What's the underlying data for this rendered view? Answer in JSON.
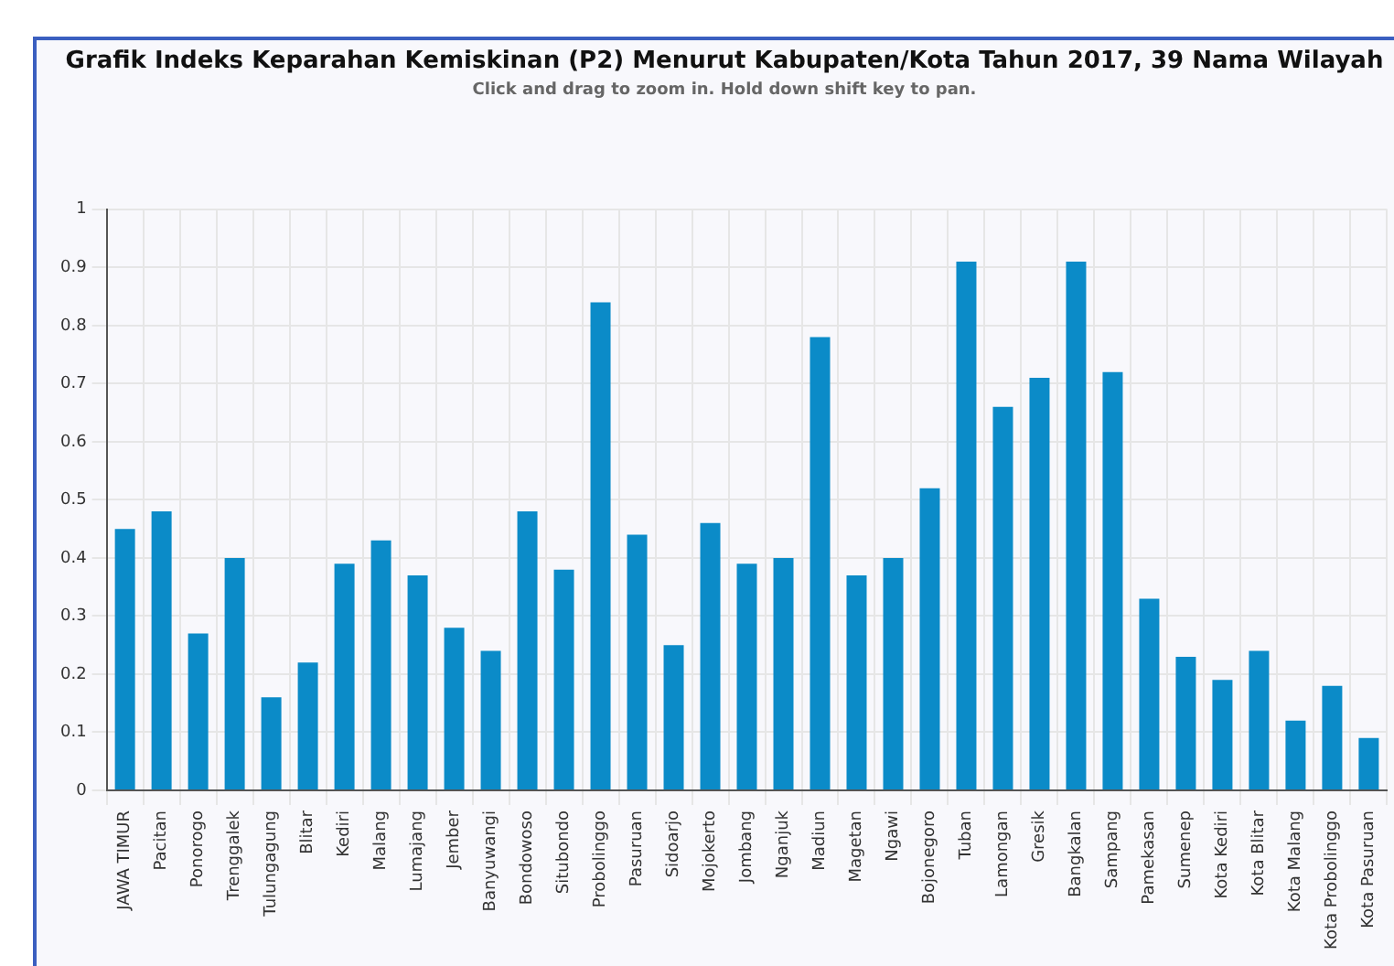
{
  "chart_data": {
    "type": "bar",
    "title": "Grafik Indeks Keparahan Kemiskinan (P2) Menurut Kabupaten/Kota Tahun 2017, 39 Nama Wilayah",
    "subtitle": "Click and drag to zoom in. Hold down shift key to pan.",
    "categories": [
      "JAWA TIMUR",
      "Pacitan",
      "Ponorogo",
      "Trenggalek",
      "Tulungagung",
      "Blitar",
      "Kediri",
      "Malang",
      "Lumajang",
      "Jember",
      "Banyuwangi",
      "Bondowoso",
      "Situbondo",
      "Probolinggo",
      "Pasuruan",
      "Sidoarjo",
      "Mojokerto",
      "Jombang",
      "Nganjuk",
      "Madiun",
      "Magetan",
      "Ngawi",
      "Bojonegoro",
      "Tuban",
      "Lamongan",
      "Gresik",
      "Bangkalan",
      "Sampang",
      "Pamekasan",
      "Sumenep",
      "Kota Kediri",
      "Kota Blitar",
      "Kota Malang",
      "Kota Probolinggo",
      "Kota Pasuruan"
    ],
    "values": [
      0.45,
      0.48,
      0.27,
      0.4,
      0.16,
      0.22,
      0.39,
      0.43,
      0.37,
      0.28,
      0.24,
      0.48,
      0.38,
      0.84,
      0.44,
      0.25,
      0.46,
      0.39,
      0.4,
      0.78,
      0.37,
      0.4,
      0.52,
      0.91,
      0.66,
      0.71,
      0.91,
      0.72,
      0.33,
      0.23,
      0.19,
      0.24,
      0.12,
      0.18,
      0.09
    ],
    "color": "#0b8bc8",
    "ylim": [
      0,
      1
    ],
    "yticks": [
      0,
      0.1,
      0.2,
      0.3,
      0.4,
      0.5,
      0.6,
      0.7,
      0.8,
      0.9,
      1
    ],
    "grid": true,
    "legend": false
  }
}
